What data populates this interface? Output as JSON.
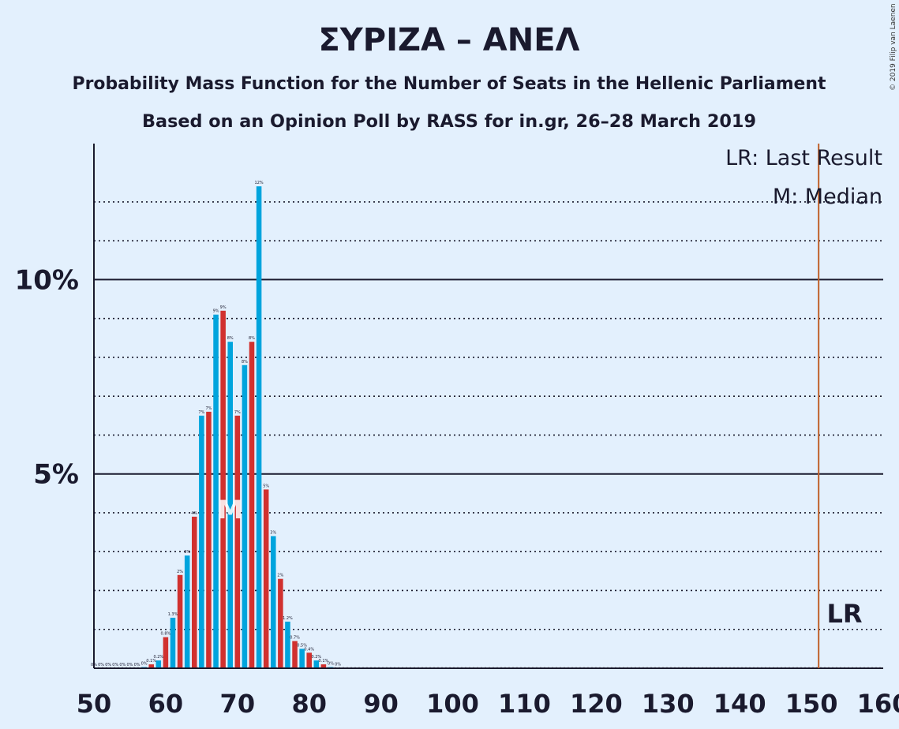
{
  "chart_data": {
    "type": "bar",
    "title": "ΣΥΡΙΖΑ – ΑΝΕΛ",
    "subtitle1": "Probability Mass Function for the Number of Seats in the Hellenic Parliament",
    "subtitle2": "Based on an Opinion Poll by RASS for in.gr, 26–28 March 2019",
    "copyright": "© 2019 Filip van Laenen",
    "legend": {
      "lr": "LR: Last Result",
      "median": "M: Median"
    },
    "xlim": [
      50,
      160
    ],
    "ylim": [
      0,
      13.5
    ],
    "x_ticks": [
      "50",
      "60",
      "70",
      "80",
      "90",
      "100",
      "110",
      "120",
      "130",
      "140",
      "150",
      "160"
    ],
    "x_tick_values": [
      50,
      60,
      70,
      80,
      90,
      100,
      110,
      120,
      130,
      140,
      150,
      160
    ],
    "y_ticks": [
      {
        "value": 5,
        "label": "5%"
      },
      {
        "value": 10,
        "label": "10%"
      }
    ],
    "y_dotted": [
      1,
      2,
      3,
      4,
      6,
      7,
      8,
      9,
      11,
      12
    ],
    "colors": {
      "even": "#d1312f",
      "odd": "#00a4dd",
      "lr_line": "#c0602a",
      "zero": "#b0b0b0"
    },
    "median": {
      "seats": 69,
      "label": "M"
    },
    "last_result": {
      "seats": 151,
      "label": "LR"
    },
    "points": [
      {
        "x": 50,
        "y": 0,
        "label": "0%"
      },
      {
        "x": 51,
        "y": 0,
        "label": "0%"
      },
      {
        "x": 52,
        "y": 0,
        "label": "0%"
      },
      {
        "x": 53,
        "y": 0,
        "label": "0%"
      },
      {
        "x": 54,
        "y": 0,
        "label": "0%"
      },
      {
        "x": 55,
        "y": 0,
        "label": "0%"
      },
      {
        "x": 56,
        "y": 0,
        "label": "0%"
      },
      {
        "x": 57,
        "y": 0.03,
        "label": "0%"
      },
      {
        "x": 58,
        "y": 0.1,
        "label": "0.1%"
      },
      {
        "x": 59,
        "y": 0.2,
        "label": "0.2%"
      },
      {
        "x": 60,
        "y": 0.8,
        "label": "0.8%"
      },
      {
        "x": 61,
        "y": 1.3,
        "label": "1.3%"
      },
      {
        "x": 62,
        "y": 2.4,
        "label": "2%"
      },
      {
        "x": 63,
        "y": 2.9,
        "label": "3%"
      },
      {
        "x": 64,
        "y": 3.9,
        "label": "4%"
      },
      {
        "x": 65,
        "y": 6.5,
        "label": "7%"
      },
      {
        "x": 66,
        "y": 6.6,
        "label": "7%"
      },
      {
        "x": 67,
        "y": 9.1,
        "label": "9%"
      },
      {
        "x": 68,
        "y": 9.2,
        "label": "9%"
      },
      {
        "x": 69,
        "y": 8.4,
        "label": "8%"
      },
      {
        "x": 70,
        "y": 6.5,
        "label": "7%"
      },
      {
        "x": 71,
        "y": 7.8,
        "label": "8%"
      },
      {
        "x": 72,
        "y": 8.4,
        "label": "8%"
      },
      {
        "x": 73,
        "y": 12.4,
        "label": "12%"
      },
      {
        "x": 74,
        "y": 4.6,
        "label": "5%"
      },
      {
        "x": 75,
        "y": 3.4,
        "label": "3%"
      },
      {
        "x": 76,
        "y": 2.3,
        "label": "2%"
      },
      {
        "x": 77,
        "y": 1.2,
        "label": "1.2%"
      },
      {
        "x": 78,
        "y": 0.7,
        "label": "0.7%"
      },
      {
        "x": 79,
        "y": 0.5,
        "label": "0.5%"
      },
      {
        "x": 80,
        "y": 0.4,
        "label": "0.4%"
      },
      {
        "x": 81,
        "y": 0.2,
        "label": "0.2%"
      },
      {
        "x": 82,
        "y": 0.1,
        "label": "0.1%"
      },
      {
        "x": 83,
        "y": 0.03,
        "label": "0%"
      },
      {
        "x": 84,
        "y": 0.01,
        "label": "0%"
      }
    ]
  }
}
